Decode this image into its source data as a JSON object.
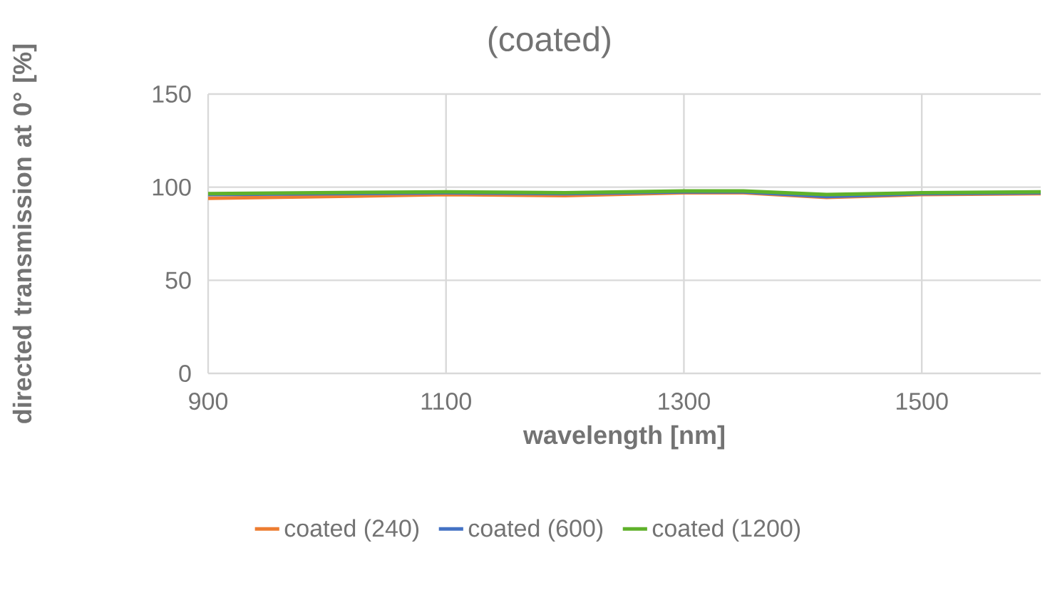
{
  "chart_data": {
    "type": "line",
    "title": "(coated)",
    "xlabel": "wavelength [nm]",
    "ylabel": "directed transmission at 0° [%]",
    "x": [
      900,
      1000,
      1100,
      1200,
      1300,
      1350,
      1420,
      1500,
      1600
    ],
    "series": [
      {
        "name": "coated (240)",
        "color": "#ed7d31",
        "values": [
          94,
          95,
          96,
          95.5,
          97,
          97,
          94.5,
          96,
          96.5
        ]
      },
      {
        "name": "coated (600)",
        "color": "#4472c4",
        "values": [
          96,
          96.5,
          97,
          96.5,
          97.5,
          97.5,
          95,
          96.5,
          97
        ]
      },
      {
        "name": "coated (1200)",
        "color": "#5fb12a",
        "values": [
          96.5,
          97,
          97.5,
          97,
          98,
          98,
          96,
          97,
          97.5
        ]
      }
    ],
    "xlim": [
      900,
      1600
    ],
    "xticks": [
      900,
      1100,
      1300,
      1500
    ],
    "ylim": [
      0,
      150
    ],
    "yticks": [
      0,
      50,
      100,
      150
    ],
    "grid": true,
    "legend": "bottom",
    "marker": "none",
    "line_style": "solid"
  }
}
